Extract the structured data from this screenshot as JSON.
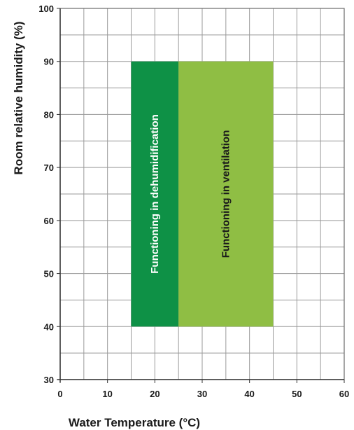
{
  "chart_data": {
    "type": "area",
    "title": "",
    "xlabel": "Water Temperature (°C)",
    "ylabel": "Room relative humidity  (%)",
    "xlim": [
      0,
      60
    ],
    "ylim": [
      30,
      100
    ],
    "x_ticks": [
      0,
      10,
      20,
      30,
      40,
      50,
      60
    ],
    "y_ticks": [
      30,
      40,
      50,
      60,
      70,
      80,
      90,
      100
    ],
    "grid": true,
    "regions": [
      {
        "label": "Functioning in dehumidification",
        "x": [
          15,
          25
        ],
        "y": [
          40,
          90
        ],
        "color": "#0e9146",
        "text_color": "#ffffff"
      },
      {
        "label": "Functioning in ventilation",
        "x": [
          25,
          45
        ],
        "y": [
          40,
          90
        ],
        "color": "#8fbe44",
        "text_color": "#1a1a1a"
      }
    ]
  }
}
